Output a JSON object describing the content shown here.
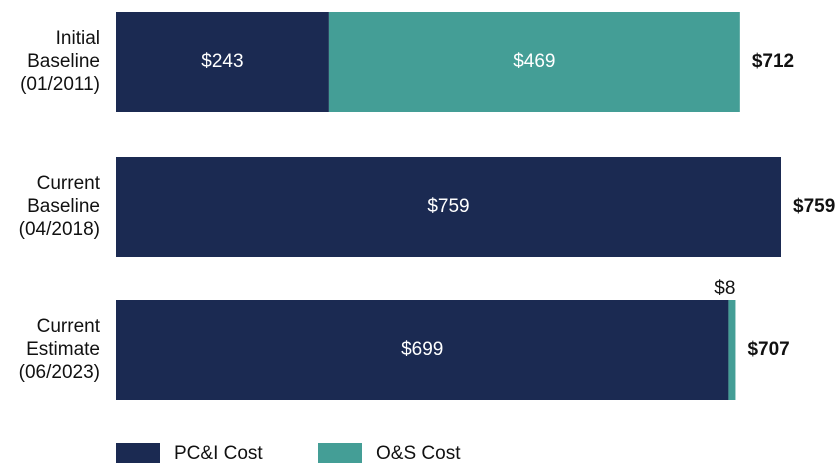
{
  "chart_data": {
    "type": "stacked-barh",
    "categories": [
      "Initial Baseline (01/2011)",
      "Current Baseline (04/2018)",
      "Current Estimate (06/2023)"
    ],
    "series": [
      {
        "name": "PC&I Cost",
        "color": "#1b2a52",
        "values": [
          243,
          759,
          699
        ],
        "value_labels": [
          "$243",
          "$759",
          "$699"
        ]
      },
      {
        "name": "O&S Cost",
        "color": "#449e96",
        "values": [
          469,
          null,
          8
        ],
        "value_labels": [
          "$469",
          null,
          "$8"
        ]
      }
    ],
    "totals": [
      712,
      759,
      707
    ],
    "total_labels": [
      "$712",
      "$759",
      "$707"
    ],
    "xlim": [
      0,
      759
    ],
    "legend": "bottom-left"
  }
}
